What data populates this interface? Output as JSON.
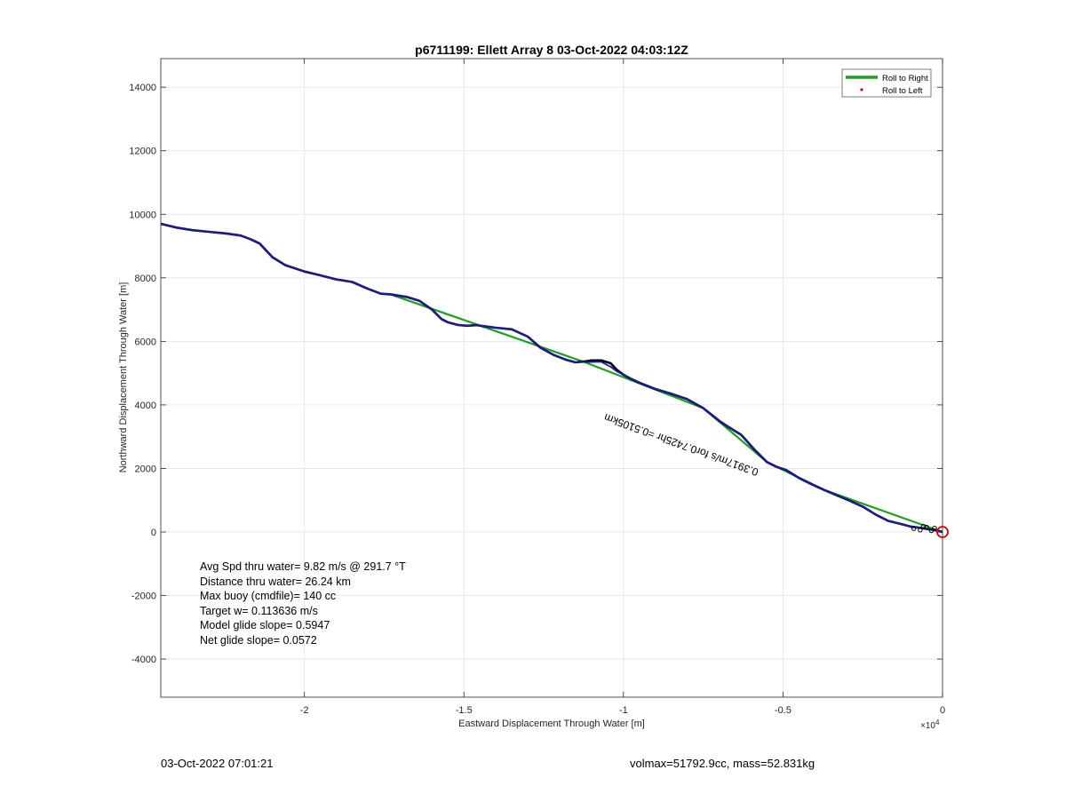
{
  "chart_data": {
    "type": "line",
    "title": "p6711199: Ellett Array 8 03-Oct-2022 04:03:12Z",
    "xlabel": "Eastward Displacement Through Water [m]",
    "ylabel": "Northward Displacement Through Water [m]",
    "x_exponent_label": "×10",
    "x_exponent_power": "4",
    "xlim": [
      -24500,
      0
    ],
    "ylim": [
      -5200,
      14900
    ],
    "x_ticks": [
      -20000,
      -15000,
      -10000,
      -5000,
      0
    ],
    "x_tick_labels": [
      "-2",
      "-1.5",
      "-1",
      "-0.5",
      "0"
    ],
    "y_ticks": [
      -4000,
      -2000,
      0,
      2000,
      4000,
      6000,
      8000,
      10000,
      12000,
      14000
    ],
    "y_tick_labels": [
      "-4000",
      "-2000",
      "0",
      "2000",
      "4000",
      "6000",
      "8000",
      "10000",
      "12000",
      "14000"
    ],
    "grid": true,
    "legend_position": "top-right",
    "legend": [
      {
        "label": "Roll to Right",
        "color": "#1aa31a",
        "marker": "line"
      },
      {
        "label": "Roll to Left",
        "color": "#e00000",
        "marker": "dot"
      }
    ],
    "series": [
      {
        "kind": "track-black",
        "color": "#000000",
        "x": [
          -24500,
          -24000,
          -23500,
          -23000,
          -22500,
          -22000,
          -21700,
          -21400,
          -21000,
          -20600,
          -20000,
          -19500,
          -19000,
          -18500,
          -18000,
          -17600,
          -17300,
          -16800,
          -16400,
          -16000,
          -15700,
          -15500,
          -15200,
          -14900,
          -14600,
          -14400,
          -14000,
          -13500,
          -13000,
          -12600,
          -12200,
          -11800,
          -11500,
          -11200,
          -11000,
          -10700,
          -10400,
          -10200,
          -10000,
          -9800,
          -9500,
          -9000,
          -8500,
          -8000,
          -7500,
          -7000,
          -6700,
          -6300,
          -5900,
          -5500,
          -5200,
          -4900,
          -4500,
          -4100,
          -3700,
          -3300,
          -2900,
          -2500,
          -2100,
          -1700,
          -1300,
          -1000,
          -700,
          -400,
          -200,
          0
        ],
        "y": [
          9700,
          9580,
          9500,
          9450,
          9400,
          9330,
          9220,
          9080,
          8650,
          8400,
          8200,
          8080,
          7950,
          7870,
          7650,
          7500,
          7480,
          7400,
          7280,
          7000,
          6700,
          6600,
          6520,
          6490,
          6510,
          6480,
          6430,
          6380,
          6150,
          5800,
          5580,
          5420,
          5340,
          5370,
          5400,
          5400,
          5310,
          5100,
          4950,
          4840,
          4700,
          4500,
          4350,
          4180,
          3900,
          3500,
          3300,
          3050,
          2600,
          2200,
          2050,
          1950,
          1700,
          1500,
          1320,
          1150,
          980,
          800,
          550,
          350,
          250,
          170,
          130,
          80,
          50,
          0
        ]
      },
      {
        "kind": "track-blue",
        "color": "#1a1ab8",
        "x": [
          -24500,
          -24000,
          -23500,
          -23000,
          -22500,
          -22000,
          -21700,
          -21400,
          -21000,
          -20600,
          -20000,
          -19500,
          -19000,
          -18500,
          -18000,
          -17600,
          -17300,
          -16800,
          -16400,
          -16000,
          -15700,
          -15500,
          -15200,
          -14900,
          -14600,
          -14400,
          -14000,
          -13500,
          -13000,
          -12600,
          -12200,
          -11800,
          -11500,
          -11200,
          -11000,
          -10700,
          -10400,
          -10200,
          -10000,
          -9800,
          -9500,
          -9000,
          -8500,
          -8000,
          -7500,
          -7000,
          -6700,
          -6300,
          -5900,
          -5500,
          -5200,
          -4900,
          -4500,
          -4100,
          -3700,
          -3300,
          -2900,
          -2500,
          -2100,
          -1700,
          -1300,
          -1000,
          -700,
          -400,
          -200,
          0
        ],
        "y": [
          9700,
          9580,
          9500,
          9450,
          9400,
          9330,
          9220,
          9080,
          8650,
          8400,
          8200,
          8080,
          7950,
          7870,
          7650,
          7500,
          7480,
          7400,
          7280,
          7000,
          6700,
          6600,
          6520,
          6490,
          6510,
          6480,
          6430,
          6380,
          6150,
          5800,
          5580,
          5420,
          5340,
          5350,
          5350,
          5360,
          5200,
          5050,
          4950,
          4840,
          4700,
          4500,
          4350,
          4180,
          3900,
          3500,
          3300,
          3050,
          2600,
          2200,
          2050,
          1950,
          1700,
          1500,
          1320,
          1150,
          980,
          800,
          550,
          350,
          250,
          170,
          130,
          80,
          50,
          0
        ]
      },
      {
        "kind": "model-green",
        "color": "#1aa31a",
        "x": [
          -17300,
          -11200,
          -7500,
          -5500,
          -3700,
          0
        ],
        "y": [
          7480,
          5340,
          3900,
          2200,
          1320,
          0
        ]
      }
    ],
    "end_marker": {
      "x": 0,
      "y": 0,
      "color": "#e00000"
    },
    "track_annotation": {
      "text": "0.3917m/s for0.7425hr =0.5105km",
      "x": -5750,
      "y": 1970,
      "rotation_deg": 200
    },
    "stats": [
      "Avg Spd thru water=  9.82 m/s @ 291.7 °T",
      "Distance thru water= 26.24 km",
      "Max buoy (cmdfile)= 140 cc",
      "Target w= 0.113636 m/s",
      "Model glide slope= 0.5947",
      "Net glide slope= 0.0572"
    ]
  },
  "footer": {
    "timestamp": "03-Oct-2022 07:01:21",
    "summary": "volmax=51792.9cc, mass=52.831kg"
  }
}
